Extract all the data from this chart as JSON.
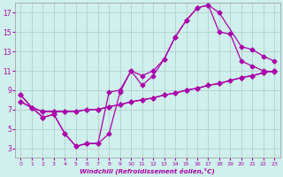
{
  "xlabel": "Windchill (Refroidissement éolien,°C)",
  "xlim": [
    -0.5,
    23.5
  ],
  "ylim": [
    2,
    18
  ],
  "xticks": [
    0,
    1,
    2,
    3,
    4,
    5,
    6,
    7,
    8,
    9,
    10,
    11,
    12,
    13,
    14,
    15,
    16,
    17,
    18,
    19,
    20,
    21,
    22,
    23
  ],
  "yticks": [
    3,
    5,
    7,
    9,
    11,
    13,
    15,
    17
  ],
  "bg_color": "#cff0ec",
  "grid_color": "#b0c8c8",
  "line_color": "#aa00aa",
  "line1_x": [
    0,
    1,
    2,
    3,
    4,
    5,
    6,
    7,
    8,
    9,
    10,
    11,
    12,
    13,
    14,
    15,
    16,
    17,
    18,
    19,
    20,
    21,
    22,
    23
  ],
  "line1_y": [
    8.5,
    7.2,
    6.2,
    6.5,
    4.5,
    3.2,
    3.5,
    3.5,
    4.5,
    8.8,
    11.0,
    9.5,
    10.5,
    12.2,
    14.5,
    16.2,
    17.5,
    17.8,
    15.0,
    14.8,
    12.0,
    11.5,
    11.0,
    10.9
  ],
  "line2_x": [
    0,
    1,
    2,
    3,
    4,
    5,
    6,
    7,
    8,
    9,
    10,
    11,
    12,
    13,
    14,
    15,
    16,
    17,
    18,
    19,
    20,
    21,
    22,
    23
  ],
  "line2_y": [
    7.8,
    7.2,
    6.8,
    6.8,
    6.8,
    6.8,
    7.0,
    7.0,
    7.3,
    7.5,
    7.8,
    8.0,
    8.2,
    8.5,
    8.7,
    9.0,
    9.2,
    9.5,
    9.7,
    10.0,
    10.3,
    10.5,
    10.8,
    11.0
  ],
  "line3_x": [
    0,
    1,
    2,
    3,
    4,
    5,
    6,
    7,
    8,
    9,
    10,
    11,
    12,
    13,
    14,
    15,
    16,
    17,
    18,
    20,
    21,
    22,
    23
  ],
  "line3_y": [
    8.5,
    7.2,
    6.2,
    6.5,
    4.5,
    3.2,
    3.5,
    3.5,
    8.8,
    9.0,
    11.0,
    10.5,
    11.0,
    12.2,
    14.5,
    16.2,
    17.5,
    17.8,
    17.0,
    13.5,
    13.2,
    12.5,
    12.0
  ],
  "line4_x": [
    0,
    1,
    2,
    3,
    4,
    5,
    6,
    7,
    8,
    9,
    10,
    11,
    12,
    13,
    14,
    15,
    16,
    17,
    18,
    20,
    21,
    22,
    23
  ],
  "line4_y": [
    7.8,
    7.2,
    6.8,
    6.8,
    6.8,
    6.8,
    7.0,
    7.0,
    7.3,
    7.5,
    7.8,
    8.0,
    8.2,
    8.5,
    8.7,
    9.0,
    9.2,
    9.5,
    9.7,
    10.3,
    10.5,
    10.8,
    11.0
  ]
}
